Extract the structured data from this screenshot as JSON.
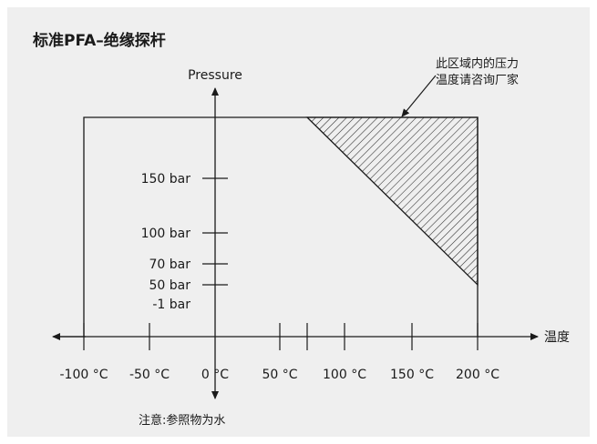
{
  "chart_data": {
    "type": "area",
    "title": "标准PFA–绝缘探杆",
    "ylabel": "Pressure",
    "xlabel": "温度",
    "x_ticks": [
      {
        "value": -100,
        "label": "-100 °C"
      },
      {
        "value": -50,
        "label": "-50 °C"
      },
      {
        "value": 0,
        "label": "0 °C"
      },
      {
        "value": 50,
        "label": "50 °C"
      },
      {
        "value": 100,
        "label": "100 °C"
      },
      {
        "value": 150,
        "label": "150 °C"
      },
      {
        "value": 200,
        "label": "200 °C"
      }
    ],
    "y_ticks": [
      {
        "value": -1,
        "label": "-1 bar"
      },
      {
        "value": 50,
        "label": "50 bar"
      },
      {
        "value": 70,
        "label": "70 bar"
      },
      {
        "value": 100,
        "label": "100 bar"
      },
      {
        "value": 150,
        "label": "150 bar"
      }
    ],
    "xlim": [
      -100,
      200
    ],
    "ylim": [
      -1,
      200
    ],
    "operating_envelope": {
      "x": [
        -100,
        -100,
        200,
        200
      ],
      "y": [
        -1,
        200,
        200,
        -1
      ]
    },
    "consult_region": {
      "x": [
        70,
        200,
        200
      ],
      "y": [
        200,
        200,
        50
      ]
    },
    "annotation": [
      "此区域内的压力",
      "温度请咨询厂家"
    ],
    "note": "注意:参照物为水",
    "grid": false,
    "colors": {
      "ink": "#1a1a1a",
      "panel": "#efefef",
      "hatch": "#2a2a2a"
    }
  }
}
